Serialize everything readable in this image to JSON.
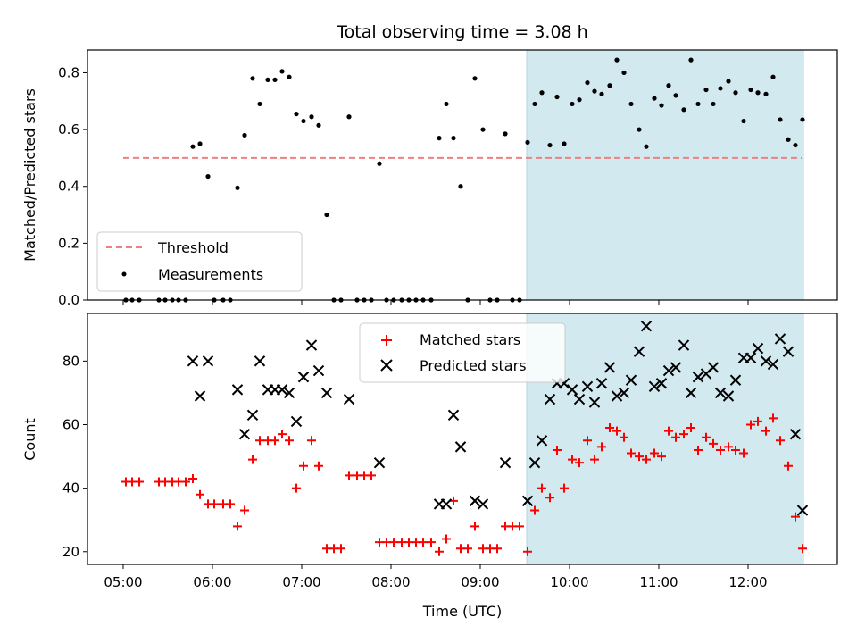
{
  "chart_data": [
    {
      "type": "scatter",
      "title": "Total observing time = 3.08 h",
      "ylabel": "Matched/Predicted stars",
      "xlim": [
        4.6,
        13.0
      ],
      "ylim": [
        0,
        0.88
      ],
      "yticks": [
        0.0,
        0.2,
        0.4,
        0.6,
        0.8
      ],
      "yticklabels": [
        "0.0",
        "0.2",
        "0.4",
        "0.6",
        "0.8"
      ],
      "highlight_span": [
        9.52,
        12.62
      ],
      "highlight_color": "#d3e9f0",
      "legend_position": "lower-left",
      "threshold": {
        "name": "Threshold",
        "y": 0.5,
        "x_range": [
          5.0,
          12.6
        ],
        "color": "#f08080",
        "style": "dashed"
      },
      "series": [
        {
          "name": "Measurements",
          "color": "#000000",
          "marker": "dot",
          "points": [
            [
              5.03,
              0
            ],
            [
              5.1,
              0
            ],
            [
              5.18,
              0
            ],
            [
              5.4,
              0
            ],
            [
              5.47,
              0
            ],
            [
              5.55,
              0
            ],
            [
              5.62,
              0
            ],
            [
              5.7,
              0
            ],
            [
              5.78,
              0.54
            ],
            [
              5.86,
              0.55
            ],
            [
              5.95,
              0.435
            ],
            [
              6.02,
              0
            ],
            [
              6.12,
              0
            ],
            [
              6.2,
              0
            ],
            [
              6.28,
              0.395
            ],
            [
              6.36,
              0.58
            ],
            [
              6.45,
              0.78
            ],
            [
              6.53,
              0.69
            ],
            [
              6.62,
              0.775
            ],
            [
              6.7,
              0.775
            ],
            [
              6.78,
              0.805
            ],
            [
              6.86,
              0.785
            ],
            [
              6.94,
              0.655
            ],
            [
              7.02,
              0.63
            ],
            [
              7.11,
              0.645
            ],
            [
              7.19,
              0.615
            ],
            [
              7.28,
              0.3
            ],
            [
              7.36,
              0
            ],
            [
              7.44,
              0
            ],
            [
              7.53,
              0.645
            ],
            [
              7.62,
              0
            ],
            [
              7.7,
              0
            ],
            [
              7.78,
              0
            ],
            [
              7.87,
              0.48
            ],
            [
              7.95,
              0
            ],
            [
              8.03,
              0
            ],
            [
              8.12,
              0
            ],
            [
              8.2,
              0
            ],
            [
              8.28,
              0
            ],
            [
              8.36,
              0
            ],
            [
              8.45,
              0
            ],
            [
              8.54,
              0.57
            ],
            [
              8.62,
              0.69
            ],
            [
              8.7,
              0.57
            ],
            [
              8.78,
              0.4
            ],
            [
              8.86,
              0
            ],
            [
              8.94,
              0.78
            ],
            [
              9.03,
              0.6
            ],
            [
              9.11,
              0
            ],
            [
              9.19,
              0
            ],
            [
              9.28,
              0.585
            ],
            [
              9.36,
              0
            ],
            [
              9.44,
              0
            ],
            [
              9.53,
              0.555
            ],
            [
              9.61,
              0.69
            ],
            [
              9.69,
              0.73
            ],
            [
              9.78,
              0.545
            ],
            [
              9.86,
              0.715
            ],
            [
              9.94,
              0.55
            ],
            [
              10.03,
              0.69
            ],
            [
              10.11,
              0.705
            ],
            [
              10.2,
              0.765
            ],
            [
              10.28,
              0.735
            ],
            [
              10.36,
              0.725
            ],
            [
              10.45,
              0.755
            ],
            [
              10.53,
              0.845
            ],
            [
              10.61,
              0.8
            ],
            [
              10.69,
              0.69
            ],
            [
              10.78,
              0.6
            ],
            [
              10.86,
              0.54
            ],
            [
              10.95,
              0.71
            ],
            [
              11.03,
              0.685
            ],
            [
              11.11,
              0.755
            ],
            [
              11.19,
              0.72
            ],
            [
              11.28,
              0.67
            ],
            [
              11.36,
              0.845
            ],
            [
              11.44,
              0.69
            ],
            [
              11.53,
              0.74
            ],
            [
              11.61,
              0.69
            ],
            [
              11.69,
              0.745
            ],
            [
              11.78,
              0.77
            ],
            [
              11.86,
              0.73
            ],
            [
              11.95,
              0.63
            ],
            [
              12.03,
              0.74
            ],
            [
              12.11,
              0.73
            ],
            [
              12.2,
              0.725
            ],
            [
              12.28,
              0.785
            ],
            [
              12.36,
              0.635
            ],
            [
              12.45,
              0.565
            ],
            [
              12.53,
              0.545
            ],
            [
              12.61,
              0.635
            ]
          ]
        }
      ]
    },
    {
      "type": "scatter",
      "xlabel": "Time (UTC)",
      "ylabel": "Count",
      "xlim": [
        4.6,
        13.0
      ],
      "ylim": [
        16,
        95
      ],
      "xticks": [
        5,
        6,
        7,
        8,
        9,
        10,
        11,
        12
      ],
      "xticklabels": [
        "05:00",
        "06:00",
        "07:00",
        "08:00",
        "09:00",
        "10:00",
        "11:00",
        "12:00"
      ],
      "yticks": [
        20,
        40,
        60,
        80
      ],
      "yticklabels": [
        "20",
        "40",
        "60",
        "80"
      ],
      "highlight_span": [
        9.52,
        12.62
      ],
      "highlight_color": "#d3e9f0",
      "legend_position": "top-center",
      "series": [
        {
          "name": "Matched stars",
          "color": "#ff0000",
          "marker": "plus",
          "points": [
            [
              5.03,
              42
            ],
            [
              5.1,
              42
            ],
            [
              5.18,
              42
            ],
            [
              5.4,
              42
            ],
            [
              5.47,
              42
            ],
            [
              5.55,
              42
            ],
            [
              5.62,
              42
            ],
            [
              5.7,
              42
            ],
            [
              5.78,
              43
            ],
            [
              5.86,
              38
            ],
            [
              5.95,
              35
            ],
            [
              6.02,
              35
            ],
            [
              6.12,
              35
            ],
            [
              6.2,
              35
            ],
            [
              6.28,
              28
            ],
            [
              6.36,
              33
            ],
            [
              6.45,
              49
            ],
            [
              6.53,
              55
            ],
            [
              6.62,
              55
            ],
            [
              6.7,
              55
            ],
            [
              6.78,
              57
            ],
            [
              6.86,
              55
            ],
            [
              6.94,
              40
            ],
            [
              7.02,
              47
            ],
            [
              7.11,
              55
            ],
            [
              7.19,
              47
            ],
            [
              7.28,
              21
            ],
            [
              7.36,
              21
            ],
            [
              7.44,
              21
            ],
            [
              7.53,
              44
            ],
            [
              7.62,
              44
            ],
            [
              7.7,
              44
            ],
            [
              7.78,
              44
            ],
            [
              7.87,
              23
            ],
            [
              7.95,
              23
            ],
            [
              8.03,
              23
            ],
            [
              8.12,
              23
            ],
            [
              8.2,
              23
            ],
            [
              8.28,
              23
            ],
            [
              8.36,
              23
            ],
            [
              8.45,
              23
            ],
            [
              8.54,
              20
            ],
            [
              8.62,
              24
            ],
            [
              8.7,
              36
            ],
            [
              8.78,
              21
            ],
            [
              8.86,
              21
            ],
            [
              8.94,
              28
            ],
            [
              9.03,
              21
            ],
            [
              9.11,
              21
            ],
            [
              9.19,
              21
            ],
            [
              9.28,
              28
            ],
            [
              9.36,
              28
            ],
            [
              9.44,
              28
            ],
            [
              9.53,
              20
            ],
            [
              9.61,
              33
            ],
            [
              9.69,
              40
            ],
            [
              9.78,
              37
            ],
            [
              9.86,
              52
            ],
            [
              9.94,
              40
            ],
            [
              10.03,
              49
            ],
            [
              10.11,
              48
            ],
            [
              10.2,
              55
            ],
            [
              10.28,
              49
            ],
            [
              10.36,
              53
            ],
            [
              10.45,
              59
            ],
            [
              10.53,
              58
            ],
            [
              10.61,
              56
            ],
            [
              10.69,
              51
            ],
            [
              10.78,
              50
            ],
            [
              10.86,
              49
            ],
            [
              10.95,
              51
            ],
            [
              11.03,
              50
            ],
            [
              11.11,
              58
            ],
            [
              11.19,
              56
            ],
            [
              11.28,
              57
            ],
            [
              11.36,
              59
            ],
            [
              11.44,
              52
            ],
            [
              11.53,
              56
            ],
            [
              11.61,
              54
            ],
            [
              11.69,
              52
            ],
            [
              11.78,
              53
            ],
            [
              11.86,
              52
            ],
            [
              11.95,
              51
            ],
            [
              12.03,
              60
            ],
            [
              12.11,
              61
            ],
            [
              12.2,
              58
            ],
            [
              12.28,
              62
            ],
            [
              12.36,
              55
            ],
            [
              12.45,
              47
            ],
            [
              12.53,
              31
            ],
            [
              12.61,
              21
            ]
          ]
        },
        {
          "name": "Predicted stars",
          "color": "#000000",
          "marker": "x",
          "points": [
            [
              5.78,
              80
            ],
            [
              5.86,
              69
            ],
            [
              5.95,
              80
            ],
            [
              6.28,
              71
            ],
            [
              6.36,
              57
            ],
            [
              6.45,
              63
            ],
            [
              6.53,
              80
            ],
            [
              6.62,
              71
            ],
            [
              6.7,
              71
            ],
            [
              6.78,
              71
            ],
            [
              6.86,
              70
            ],
            [
              6.94,
              61
            ],
            [
              7.02,
              75
            ],
            [
              7.11,
              85
            ],
            [
              7.19,
              77
            ],
            [
              7.28,
              70
            ],
            [
              7.53,
              68
            ],
            [
              7.87,
              48
            ],
            [
              8.54,
              35
            ],
            [
              8.62,
              35
            ],
            [
              8.7,
              63
            ],
            [
              8.78,
              53
            ],
            [
              8.94,
              36
            ],
            [
              9.03,
              35
            ],
            [
              9.28,
              48
            ],
            [
              9.53,
              36
            ],
            [
              9.61,
              48
            ],
            [
              9.69,
              55
            ],
            [
              9.78,
              68
            ],
            [
              9.86,
              73
            ],
            [
              9.94,
              73
            ],
            [
              10.03,
              71
            ],
            [
              10.11,
              68
            ],
            [
              10.2,
              72
            ],
            [
              10.28,
              67
            ],
            [
              10.36,
              73
            ],
            [
              10.45,
              78
            ],
            [
              10.53,
              69
            ],
            [
              10.61,
              70
            ],
            [
              10.69,
              74
            ],
            [
              10.78,
              83
            ],
            [
              10.86,
              91
            ],
            [
              10.95,
              72
            ],
            [
              11.03,
              73
            ],
            [
              11.11,
              77
            ],
            [
              11.19,
              78
            ],
            [
              11.28,
              85
            ],
            [
              11.36,
              70
            ],
            [
              11.44,
              75
            ],
            [
              11.53,
              76
            ],
            [
              11.61,
              78
            ],
            [
              11.69,
              70
            ],
            [
              11.78,
              69
            ],
            [
              11.86,
              74
            ],
            [
              11.95,
              81
            ],
            [
              12.03,
              81
            ],
            [
              12.11,
              84
            ],
            [
              12.2,
              80
            ],
            [
              12.28,
              79
            ],
            [
              12.36,
              87
            ],
            [
              12.45,
              83
            ],
            [
              12.53,
              57
            ],
            [
              12.61,
              33
            ]
          ]
        }
      ]
    }
  ]
}
